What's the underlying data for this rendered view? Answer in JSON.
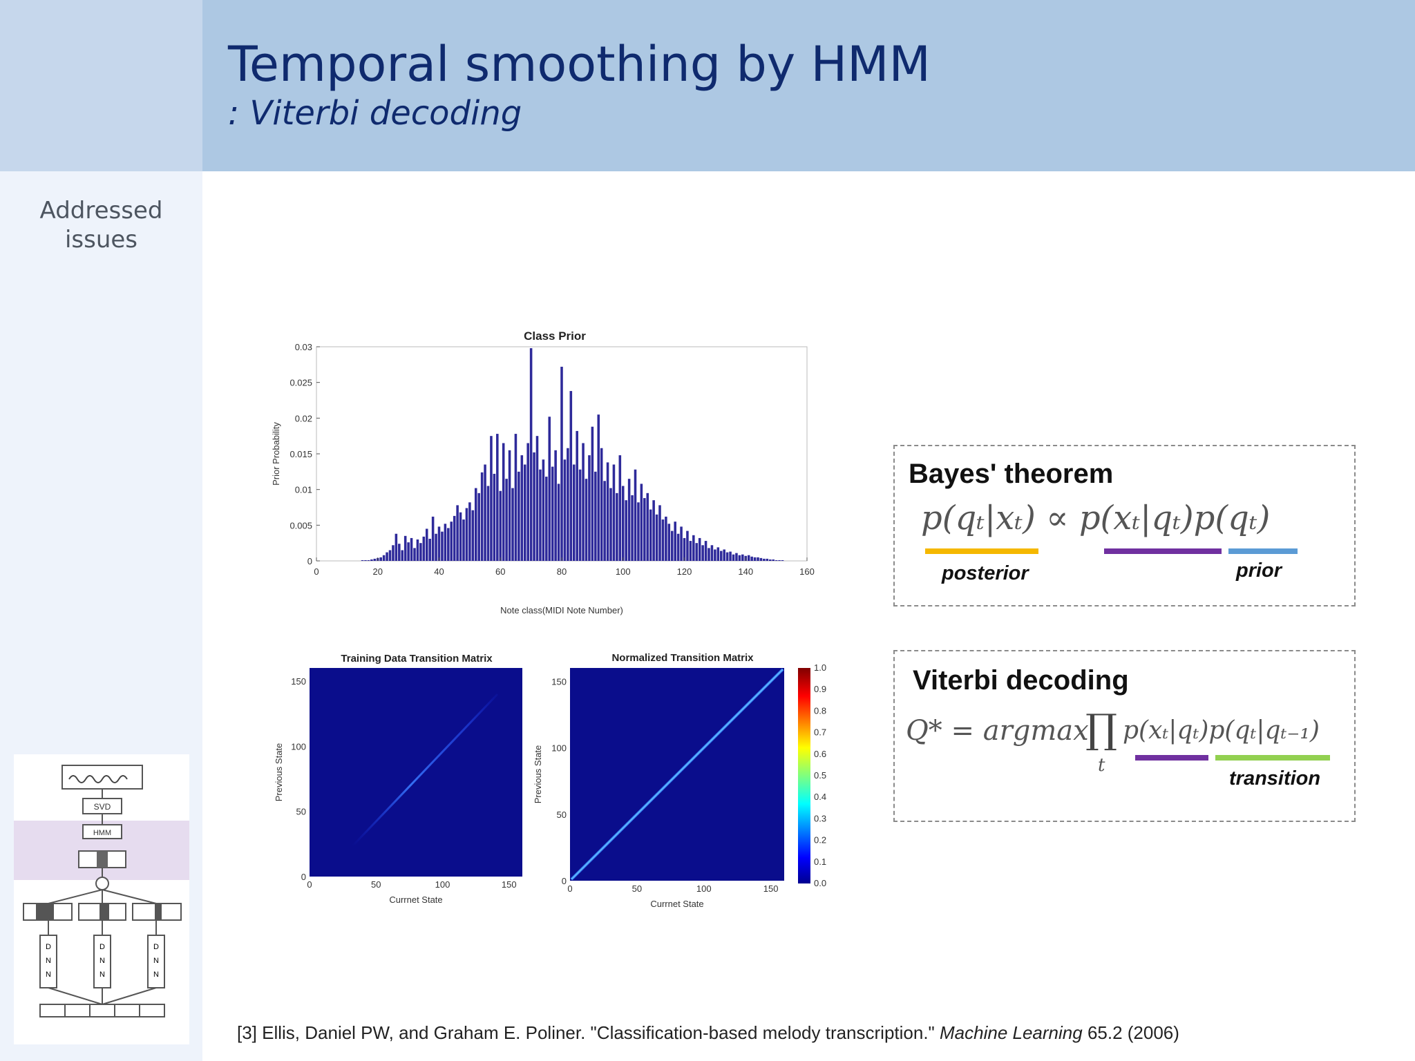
{
  "header": {
    "title": "Temporal smoothing by HMM",
    "subtitle": ": Viterbi decoding"
  },
  "sidebar": {
    "label_line1": "Addressed",
    "label_line2": "issues",
    "diagram": {
      "svd_label": "SVD",
      "hmm_label": "HMM",
      "dnn_letters": [
        "D",
        "N",
        "N"
      ]
    }
  },
  "charts": {
    "class_prior": {
      "title": "Class Prior",
      "xlabel": "Note class(MIDI Note Number)",
      "ylabel": "Prior Probability",
      "xticks": [
        "0",
        "20",
        "40",
        "60",
        "80",
        "100",
        "120",
        "140",
        "160"
      ],
      "yticks": [
        "0",
        "0.005",
        "0.01",
        "0.015",
        "0.02",
        "0.025",
        "0.03"
      ]
    },
    "training_matrix": {
      "title": "Training Data Transition Matrix",
      "xlabel": "Currnet State",
      "ylabel": "Previous State",
      "xticks": [
        "0",
        "50",
        "100",
        "150"
      ],
      "yticks": [
        "0",
        "50",
        "100",
        "150"
      ]
    },
    "normalized_matrix": {
      "title": "Normalized Transition Matrix",
      "xlabel": "Currnet State",
      "ylabel": "Previous State",
      "xticks": [
        "0",
        "50",
        "100",
        "150"
      ],
      "yticks": [
        "0",
        "50",
        "100",
        "150"
      ],
      "colorbar_ticks": [
        "1.0",
        "0.9",
        "0.8",
        "0.7",
        "0.6",
        "0.5",
        "0.4",
        "0.3",
        "0.2",
        "0.1",
        "0.0"
      ]
    }
  },
  "chart_data": [
    {
      "type": "bar",
      "title": "Class Prior",
      "xlabel": "Note class(MIDI Note Number)",
      "ylabel": "Prior Probability",
      "xlim": [
        0,
        160
      ],
      "ylim": [
        0,
        0.03
      ],
      "x_start": 10,
      "values": [
        0,
        0,
        0,
        0,
        0,
        0.0001,
        0.0001,
        0.0001,
        0.0002,
        0.0003,
        0.0004,
        0.0005,
        0.0008,
        0.0012,
        0.0015,
        0.0022,
        0.0038,
        0.0024,
        0.0015,
        0.0035,
        0.0026,
        0.0032,
        0.0018,
        0.003,
        0.0025,
        0.0034,
        0.0045,
        0.0031,
        0.0062,
        0.0038,
        0.0048,
        0.0041,
        0.0052,
        0.0046,
        0.0055,
        0.0063,
        0.0078,
        0.0068,
        0.0058,
        0.0074,
        0.0082,
        0.0071,
        0.0102,
        0.0095,
        0.0124,
        0.0135,
        0.0105,
        0.0175,
        0.0122,
        0.0178,
        0.0098,
        0.0165,
        0.0115,
        0.0155,
        0.0102,
        0.0178,
        0.0125,
        0.0148,
        0.0135,
        0.0165,
        0.0298,
        0.0152,
        0.0175,
        0.0128,
        0.0142,
        0.0118,
        0.0202,
        0.0132,
        0.0155,
        0.0108,
        0.0272,
        0.0142,
        0.0158,
        0.0238,
        0.0135,
        0.0182,
        0.0128,
        0.0165,
        0.0115,
        0.0148,
        0.0188,
        0.0125,
        0.0205,
        0.0158,
        0.0112,
        0.0138,
        0.0102,
        0.0135,
        0.0095,
        0.0148,
        0.0105,
        0.0085,
        0.0115,
        0.0092,
        0.0128,
        0.0082,
        0.0108,
        0.0088,
        0.0095,
        0.0072,
        0.0085,
        0.0065,
        0.0078,
        0.0058,
        0.0062,
        0.0052,
        0.0042,
        0.0055,
        0.0038,
        0.0048,
        0.0032,
        0.0042,
        0.0028,
        0.0036,
        0.0025,
        0.0032,
        0.0022,
        0.0028,
        0.0018,
        0.0022,
        0.0016,
        0.0019,
        0.0014,
        0.0016,
        0.0012,
        0.0013,
        0.0009,
        0.0011,
        0.0008,
        0.0009,
        0.0007,
        0.0008,
        0.0006,
        0.0005,
        0.0005,
        0.0004,
        0.0003,
        0.0003,
        0.0002,
        0.0002,
        0.0001,
        0.0001,
        0.0001,
        0,
        0,
        0
      ]
    },
    {
      "type": "heatmap",
      "title": "Training Data Transition Matrix",
      "xlabel": "Currnet State",
      "ylabel": "Previous State",
      "xlim": [
        0,
        160
      ],
      "ylim": [
        0,
        160
      ]
    },
    {
      "type": "heatmap",
      "title": "Normalized Transition Matrix",
      "xlabel": "Currnet State",
      "ylabel": "Previous State",
      "xlim": [
        0,
        160
      ],
      "ylim": [
        0,
        160
      ],
      "colorbar_range": [
        0.0,
        1.0
      ]
    }
  ],
  "bayes_box": {
    "title": "Bayes' theorem",
    "equation": "p(qₜ|xₜ) ∝ p(xₜ|qₜ)p(qₜ)",
    "posterior_label": "posterior",
    "prior_label": "prior",
    "colors": {
      "posterior": "#f5b800",
      "likelihood": "#7030a0",
      "prior": "#5b9bd5"
    }
  },
  "viterbi_box": {
    "title": "Viterbi decoding",
    "equation_left": "Q* = argmax",
    "product_symbol": "∏",
    "product_index": "t",
    "equation_right": "p(xₜ|qₜ)p(qₜ|qₜ₋₁)",
    "transition_label": "transition",
    "colors": {
      "likelihood": "#7030a0",
      "transition": "#92d050"
    }
  },
  "citation": {
    "prefix": "[3] Ellis, Daniel PW, and Graham E. Poliner. \"Classification-based melody transcription.\" ",
    "journal": "Machine Learning",
    "suffix": " 65.2 (2006)"
  }
}
